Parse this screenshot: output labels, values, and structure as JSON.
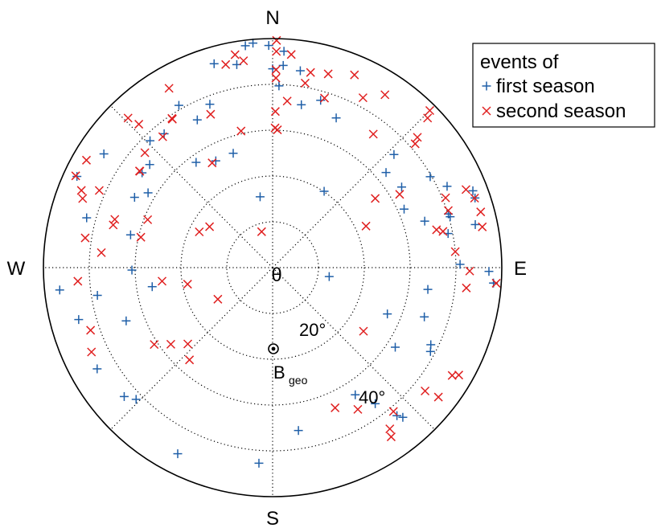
{
  "chart_data": {
    "type": "scatter",
    "projection": "polar sky map (azimuth, zenith angle)",
    "rlim": [
      0,
      50
    ],
    "rings": [
      10,
      20,
      30,
      40
    ],
    "spokes_deg": [
      0,
      45,
      90,
      135,
      180,
      225,
      270,
      315
    ],
    "grid": true,
    "legend_position": "top-right",
    "directions": {
      "north": "N",
      "east": "E",
      "south": "S",
      "west": "W"
    },
    "center_label": "θ",
    "ring_labels": [
      "20°",
      "40°"
    ],
    "bgeo_label": "B",
    "bgeo_subscript": "geo",
    "bgeo_point": {
      "az": 180,
      "zen": 16
    },
    "legend_title": "events of",
    "series": [
      {
        "name": "first season",
        "marker": "+",
        "color": "#1f5fa8",
        "points": [
          {
            "az": 353,
            "zen": 48.8
          },
          {
            "az": 355,
            "zen": 49.2
          },
          {
            "az": 359,
            "zen": 48.5
          },
          {
            "az": 3,
            "zen": 47.3
          },
          {
            "az": 344,
            "zen": 46.3
          },
          {
            "az": 350,
            "zen": 45.0
          },
          {
            "az": 0,
            "zen": 43.4
          },
          {
            "az": 3,
            "zen": 44.2
          },
          {
            "az": 8,
            "zen": 43.4
          },
          {
            "az": 2,
            "zen": 39.7
          },
          {
            "az": 16,
            "zen": 38.0
          },
          {
            "az": 10,
            "zen": 36.1
          },
          {
            "az": 23,
            "zen": 35.5
          },
          {
            "az": 47,
            "zen": 36.2
          },
          {
            "az": 50,
            "zen": 32.3
          },
          {
            "az": 34,
            "zen": 20.1
          },
          {
            "az": 333,
            "zen": 36.2
          },
          {
            "az": 339,
            "zen": 38.2
          },
          {
            "az": 330,
            "zen": 40.9
          },
          {
            "az": 316,
            "zen": 38.5
          },
          {
            "az": 321,
            "zen": 37.6
          },
          {
            "az": 304,
            "zen": 44.4
          },
          {
            "az": 310,
            "zen": 35.0
          },
          {
            "az": 306,
            "zen": 35.2
          },
          {
            "az": 324,
            "zen": 28.4
          },
          {
            "az": 332,
            "zen": 26.4
          },
          {
            "az": 341,
            "zen": 26.4
          },
          {
            "az": 350,
            "zen": 15.7
          },
          {
            "az": 295,
            "zen": 47.1
          },
          {
            "az": 297,
            "zen": 33.8
          },
          {
            "az": 301,
            "zen": 31.7
          },
          {
            "az": 285,
            "zen": 42.0
          },
          {
            "az": 283,
            "zen": 31.8
          },
          {
            "az": 264,
            "zen": 46.7
          },
          {
            "az": 261,
            "zen": 38.7
          },
          {
            "az": 269,
            "zen": 30.7
          },
          {
            "az": 261,
            "zen": 26.6
          },
          {
            "az": 255,
            "zen": 43.8
          },
          {
            "az": 250,
            "zen": 34.0
          },
          {
            "az": 240,
            "zen": 44.2
          },
          {
            "az": 229,
            "zen": 42.9
          },
          {
            "az": 226,
            "zen": 41.4
          },
          {
            "az": 207,
            "zen": 45.6
          },
          {
            "az": 184,
            "zen": 42.8
          },
          {
            "az": 171,
            "zen": 36.0
          },
          {
            "az": 147,
            "zen": 33.1
          },
          {
            "az": 143,
            "zen": 37.2
          },
          {
            "az": 140,
            "zen": 42.2
          },
          {
            "az": 139,
            "zen": 43.3
          },
          {
            "az": 123,
            "zen": 31.9
          },
          {
            "az": 112,
            "zen": 27.0
          },
          {
            "az": 118,
            "zen": 39.0
          },
          {
            "az": 108,
            "zen": 34.8
          },
          {
            "az": 98,
            "zen": 34.2
          },
          {
            "az": 99,
            "zen": 12.5
          },
          {
            "az": 116,
            "zen": 38.4
          },
          {
            "az": 89,
            "zen": 40.9
          },
          {
            "az": 91,
            "zen": 47.2
          },
          {
            "az": 94,
            "zen": 48.3
          },
          {
            "az": 74,
            "zen": 40.3
          },
          {
            "az": 79,
            "zen": 39.0
          },
          {
            "az": 73,
            "zen": 40.1
          },
          {
            "az": 65,
            "zen": 42.0
          },
          {
            "az": 66,
            "zen": 31.4
          },
          {
            "az": 73,
            "zen": 34.7
          },
          {
            "az": 69,
            "zen": 46.8
          },
          {
            "az": 71,
            "zen": 46.7
          },
          {
            "az": 58,
            "zen": 33.2
          },
          {
            "az": 60,
            "zen": 39.7
          },
          {
            "az": 78,
            "zen": 45.2
          }
        ]
      },
      {
        "name": "second season",
        "marker": "×",
        "color": "#e02020",
        "points": [
          {
            "az": 350,
            "zen": 47.2
          },
          {
            "az": 347,
            "zen": 45.5
          },
          {
            "az": 352,
            "zen": 45.6
          },
          {
            "az": 1,
            "zen": 49.6
          },
          {
            "az": 1,
            "zen": 47.2
          },
          {
            "az": 5,
            "zen": 46.7
          },
          {
            "az": 1,
            "zen": 43.2
          },
          {
            "az": 1,
            "zen": 41.4
          },
          {
            "az": 10,
            "zen": 40.9
          },
          {
            "az": 5,
            "zen": 36.5
          },
          {
            "az": 1,
            "zen": 34.1
          },
          {
            "az": 1,
            "zen": 30.5
          },
          {
            "az": 347,
            "zen": 30.6
          },
          {
            "az": 2,
            "zen": 30.1
          },
          {
            "az": 11,
            "zen": 43.4
          },
          {
            "az": 16,
            "zen": 44.0
          },
          {
            "az": 23,
            "zen": 45.7
          },
          {
            "az": 28,
            "zen": 42.0
          },
          {
            "az": 17,
            "zen": 38.7
          },
          {
            "az": 33,
            "zen": 45.0
          },
          {
            "az": 45,
            "zen": 48.5
          },
          {
            "az": 46,
            "zen": 47.0
          },
          {
            "az": 48,
            "zen": 42.5
          },
          {
            "az": 49,
            "zen": 41.2
          },
          {
            "az": 37,
            "zen": 36.5
          },
          {
            "az": 60,
            "zen": 32.0
          },
          {
            "az": 66,
            "zen": 22.3
          },
          {
            "az": 343,
            "zen": 8.2
          },
          {
            "az": 330,
            "zen": 45.2
          },
          {
            "az": 316,
            "zen": 45.4
          },
          {
            "az": 317,
            "zen": 42.8
          },
          {
            "az": 320,
            "zen": 37.3
          },
          {
            "az": 326,
            "zen": 39.3
          },
          {
            "az": 326,
            "zen": 39.1
          },
          {
            "az": 338,
            "zen": 36.1
          },
          {
            "az": 330,
            "zen": 26.4
          },
          {
            "az": 312,
            "zen": 37.5
          },
          {
            "az": 306,
            "zen": 35.9
          },
          {
            "az": 300,
            "zen": 46.9
          },
          {
            "az": 306,
            "zen": 35.8
          },
          {
            "az": 295,
            "zen": 47.4
          },
          {
            "az": 294,
            "zen": 41.4
          },
          {
            "az": 287,
            "zen": 36.0
          },
          {
            "az": 291,
            "zen": 29.2
          },
          {
            "az": 292,
            "zen": 45.0
          },
          {
            "az": 290,
            "zen": 44.1
          },
          {
            "az": 285,
            "zen": 36.0
          },
          {
            "az": 279,
            "zen": 41.4
          },
          {
            "az": 283,
            "zen": 29.5
          },
          {
            "az": 296,
            "zen": 17.8
          },
          {
            "az": 303,
            "zen": 16.4
          },
          {
            "az": 275,
            "zen": 37.5
          },
          {
            "az": 266,
            "zen": 42.6
          },
          {
            "az": 263,
            "zen": 24.3
          },
          {
            "az": 259,
            "zen": 18.9
          },
          {
            "az": 240,
            "zen": 13.8
          },
          {
            "az": 251,
            "zen": 42.0
          },
          {
            "az": 245,
            "zen": 43.6
          },
          {
            "az": 237,
            "zen": 30.8
          },
          {
            "az": 233,
            "zen": 27.8
          },
          {
            "az": 228,
            "zen": 24.9
          },
          {
            "az": 222,
            "zen": 27.1
          },
          {
            "az": 94,
            "zen": 48.9
          },
          {
            "az": 91,
            "zen": 43.0
          },
          {
            "az": 78,
            "zen": 38.0
          },
          {
            "az": 77,
            "zen": 36.7
          },
          {
            "az": 79,
            "zen": 46.6
          },
          {
            "az": 68,
            "zen": 40.7
          },
          {
            "az": 71,
            "zen": 46.6
          },
          {
            "az": 72,
            "zen": 40.3
          },
          {
            "az": 68,
            "zen": 45.5
          },
          {
            "az": 56,
            "zen": 27.0
          },
          {
            "az": 75,
            "zen": 47.0
          },
          {
            "az": 85,
            "zen": 40.0
          },
          {
            "az": 125,
            "zen": 24.2
          },
          {
            "az": 128,
            "zen": 45.9
          },
          {
            "az": 120,
            "zen": 46.9
          },
          {
            "az": 121,
            "zen": 45.7
          },
          {
            "az": 129,
            "zen": 42.8
          },
          {
            "az": 140,
            "zen": 41.0
          },
          {
            "az": 144,
            "zen": 43.5
          },
          {
            "az": 145,
            "zen": 45.1
          },
          {
            "az": 149,
            "zen": 36.1
          },
          {
            "az": 156,
            "zen": 33.5
          },
          {
            "az": 96,
            "zen": 42.5
          }
        ]
      }
    ]
  }
}
